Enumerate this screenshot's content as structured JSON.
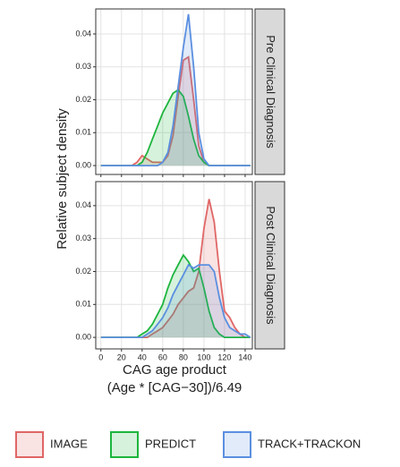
{
  "chart_data": [
    {
      "type": "area",
      "strip": "Pre Clinical Diagnosis",
      "y_label": "Relative subject density",
      "x": [
        0,
        5,
        10,
        15,
        20,
        25,
        30,
        35,
        40,
        45,
        50,
        55,
        60,
        65,
        70,
        75,
        80,
        85,
        90,
        95,
        100,
        105,
        110,
        115,
        120,
        125,
        130,
        135,
        140,
        145
      ],
      "series": [
        {
          "name": "IMAGE",
          "color": "#e06666",
          "values": [
            0,
            0,
            0,
            0,
            0,
            0,
            0,
            0.001,
            0.003,
            0.002,
            0.001,
            0.001,
            0.001,
            0.003,
            0.009,
            0.021,
            0.032,
            0.033,
            0.02,
            0.006,
            0.001,
            0,
            0,
            0,
            0,
            0,
            0,
            0,
            0,
            0
          ]
        },
        {
          "name": "PREDICT",
          "color": "#1db53d",
          "values": [
            0,
            0,
            0,
            0,
            0,
            0,
            0,
            0,
            0.001,
            0.004,
            0.008,
            0.012,
            0.016,
            0.019,
            0.022,
            0.023,
            0.021,
            0.015,
            0.008,
            0.003,
            0.001,
            0,
            0,
            0,
            0,
            0,
            0,
            0,
            0,
            0
          ]
        },
        {
          "name": "TRACK+TRACKON",
          "color": "#5b8fe0",
          "values": [
            0,
            0,
            0,
            0,
            0,
            0,
            0,
            0,
            0,
            0,
            0,
            0,
            0.001,
            0.004,
            0.012,
            0.024,
            0.036,
            0.046,
            0.03,
            0.01,
            0.002,
            0,
            0,
            0,
            0,
            0,
            0,
            0,
            0,
            0
          ]
        }
      ],
      "xlim": [
        -5,
        147
      ],
      "xticks": [
        0,
        20,
        40,
        60,
        80,
        100,
        120,
        140
      ],
      "ylim": [
        -0.0027,
        0.0476
      ],
      "yticks": [
        {
          "value": 0,
          "label": "0.00"
        },
        {
          "value": 0.01,
          "label": "0.01"
        },
        {
          "value": 0.02,
          "label": "0.02"
        },
        {
          "value": 0.03,
          "label": "0.03"
        },
        {
          "value": 0.04,
          "label": "0.04"
        }
      ],
      "grid": true
    },
    {
      "type": "area",
      "strip": "Post Clinical Diagnosis",
      "x_label": [
        "CAG age product",
        "(Age * [CAG−30])/6.49"
      ],
      "x": [
        0,
        5,
        10,
        15,
        20,
        25,
        30,
        35,
        40,
        45,
        50,
        55,
        60,
        65,
        70,
        75,
        80,
        85,
        90,
        95,
        100,
        105,
        110,
        115,
        120,
        125,
        130,
        135,
        140,
        145
      ],
      "series": [
        {
          "name": "IMAGE",
          "color": "#e06666",
          "values": [
            0,
            0,
            0,
            0,
            0,
            0,
            0,
            0,
            0,
            0,
            0.001,
            0.002,
            0.003,
            0.005,
            0.007,
            0.01,
            0.012,
            0.014,
            0.015,
            0.02,
            0.033,
            0.042,
            0.035,
            0.02,
            0.008,
            0.006,
            0.003,
            0.001,
            0,
            0
          ]
        },
        {
          "name": "PREDICT",
          "color": "#1db53d",
          "values": [
            0,
            0,
            0,
            0,
            0,
            0,
            0,
            0,
            0.001,
            0.002,
            0.004,
            0.007,
            0.01,
            0.015,
            0.019,
            0.022,
            0.025,
            0.023,
            0.02,
            0.021,
            0.015,
            0.008,
            0.003,
            0.001,
            0,
            0,
            0,
            0,
            0,
            0
          ]
        },
        {
          "name": "TRACK+TRACKON",
          "color": "#5b8fe0",
          "values": [
            0,
            0,
            0,
            0,
            0,
            0,
            0,
            0,
            0,
            0.001,
            0.002,
            0.004,
            0.006,
            0.009,
            0.013,
            0.016,
            0.019,
            0.022,
            0.021,
            0.022,
            0.022,
            0.022,
            0.02,
            0.012,
            0.006,
            0.003,
            0.002,
            0.001,
            0.001,
            0
          ]
        }
      ],
      "xlim": [
        -5,
        147
      ],
      "xticks": [
        0,
        20,
        40,
        60,
        80,
        100,
        120,
        140
      ],
      "ylim": [
        -0.0035,
        0.0473
      ],
      "yticks": [
        {
          "value": 0,
          "label": "0.00"
        },
        {
          "value": 0.01,
          "label": "0.01"
        },
        {
          "value": 0.02,
          "label": "0.02"
        },
        {
          "value": 0.03,
          "label": "0.03"
        },
        {
          "value": 0.04,
          "label": "0.04"
        }
      ],
      "grid": true
    }
  ]
}
